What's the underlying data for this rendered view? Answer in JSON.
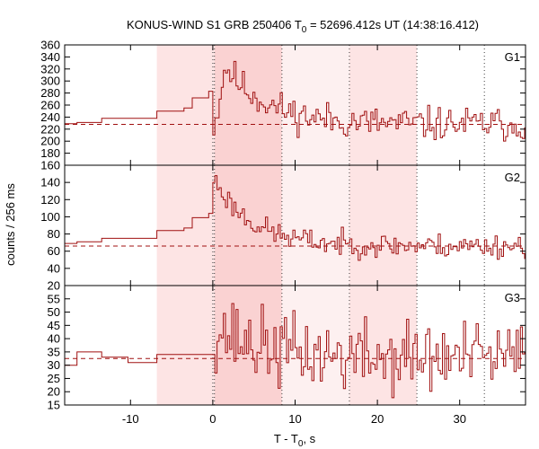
{
  "chart_data": {
    "type": "line",
    "title_parts": {
      "prefix": "KONUS-WIND S1 GRB 250406 T",
      "subscript": "0",
      "suffix": " = 52696.412s UT (14:38:16.412)"
    },
    "xlabel_parts": {
      "prefix": "T - T",
      "subscript": "0",
      "suffix": ", s"
    },
    "ylabel": "counts / 256 ms",
    "xlim": [
      -18,
      38
    ],
    "xticks": [
      -10,
      0,
      10,
      20,
      30
    ],
    "xtick_labels": [
      "-10",
      "0",
      "10",
      "20",
      "30"
    ],
    "shaded_intervals": [
      {
        "from": -6.8,
        "to": 0.2,
        "level": "light"
      },
      {
        "from": 0.2,
        "to": 8.4,
        "level": "dark"
      },
      {
        "from": 8.4,
        "to": 16.6,
        "level": "faint"
      },
      {
        "from": 16.6,
        "to": 24.8,
        "level": "light"
      }
    ],
    "vertical_dotted_lines": [
      0.0,
      0.2,
      8.4,
      16.6,
      24.8,
      33.0
    ],
    "line_color": "#a01010",
    "shade_colors": {
      "light": "#fde4e4",
      "dark": "#fad2d2",
      "faint": "#fdf0f0"
    },
    "panels": [
      {
        "name": "G1",
        "ylim": [
          160,
          360
        ],
        "yticks": [
          160,
          180,
          200,
          220,
          240,
          260,
          280,
          300,
          320,
          340,
          360
        ],
        "ytick_labels": [
          "160",
          "180",
          "200",
          "220",
          "240",
          "260",
          "280",
          "300",
          "320",
          "340",
          "360"
        ],
        "background": 228,
        "steps": [
          {
            "t": -18,
            "v": 229
          },
          {
            "t": -16.5,
            "v": 231
          },
          {
            "t": -13.5,
            "v": 238
          },
          {
            "t": -6.8,
            "v": 250
          },
          {
            "t": -3.5,
            "v": 255
          },
          {
            "t": -2.5,
            "v": 272
          },
          {
            "t": -0.5,
            "v": 283
          }
        ],
        "peak": 325,
        "peak_time": 1.5,
        "decay": 5.0,
        "noise": 14,
        "seed": 11
      },
      {
        "name": "G2",
        "ylim": [
          20,
          160
        ],
        "yticks": [
          20,
          40,
          60,
          80,
          100,
          120,
          140
        ],
        "ytick_labels": [
          "20",
          "40",
          "60",
          "80",
          "100",
          "120",
          "140"
        ],
        "background": 66,
        "steps": [
          {
            "t": -18,
            "v": 69
          },
          {
            "t": -16.5,
            "v": 71
          },
          {
            "t": -13.5,
            "v": 75
          },
          {
            "t": -6.8,
            "v": 84
          },
          {
            "t": -3.5,
            "v": 87
          },
          {
            "t": -2.5,
            "v": 99
          },
          {
            "t": -0.5,
            "v": 104
          }
        ],
        "peak": 145,
        "peak_time": 0.1,
        "decay": 4.5,
        "noise": 7,
        "seed": 23
      },
      {
        "name": "G3",
        "ylim": [
          15,
          60
        ],
        "yticks": [
          15,
          20,
          25,
          30,
          35,
          40,
          45,
          50,
          55
        ],
        "ytick_labels": [
          "15",
          "20",
          "25",
          "30",
          "35",
          "40",
          "45",
          "50",
          "55"
        ],
        "background": 32.5,
        "steps": [
          {
            "t": -18,
            "v": 30
          },
          {
            "t": -16.5,
            "v": 35
          },
          {
            "t": -13.5,
            "v": 33
          },
          {
            "t": -10.3,
            "v": 31
          },
          {
            "t": -6.8,
            "v": 34
          },
          {
            "t": -3.5,
            "v": 34
          },
          {
            "t": -0.5,
            "v": 34
          }
        ],
        "peak": 44,
        "peak_time": 0.5,
        "decay": 6.0,
        "noise": 7,
        "seed": 37
      }
    ]
  }
}
